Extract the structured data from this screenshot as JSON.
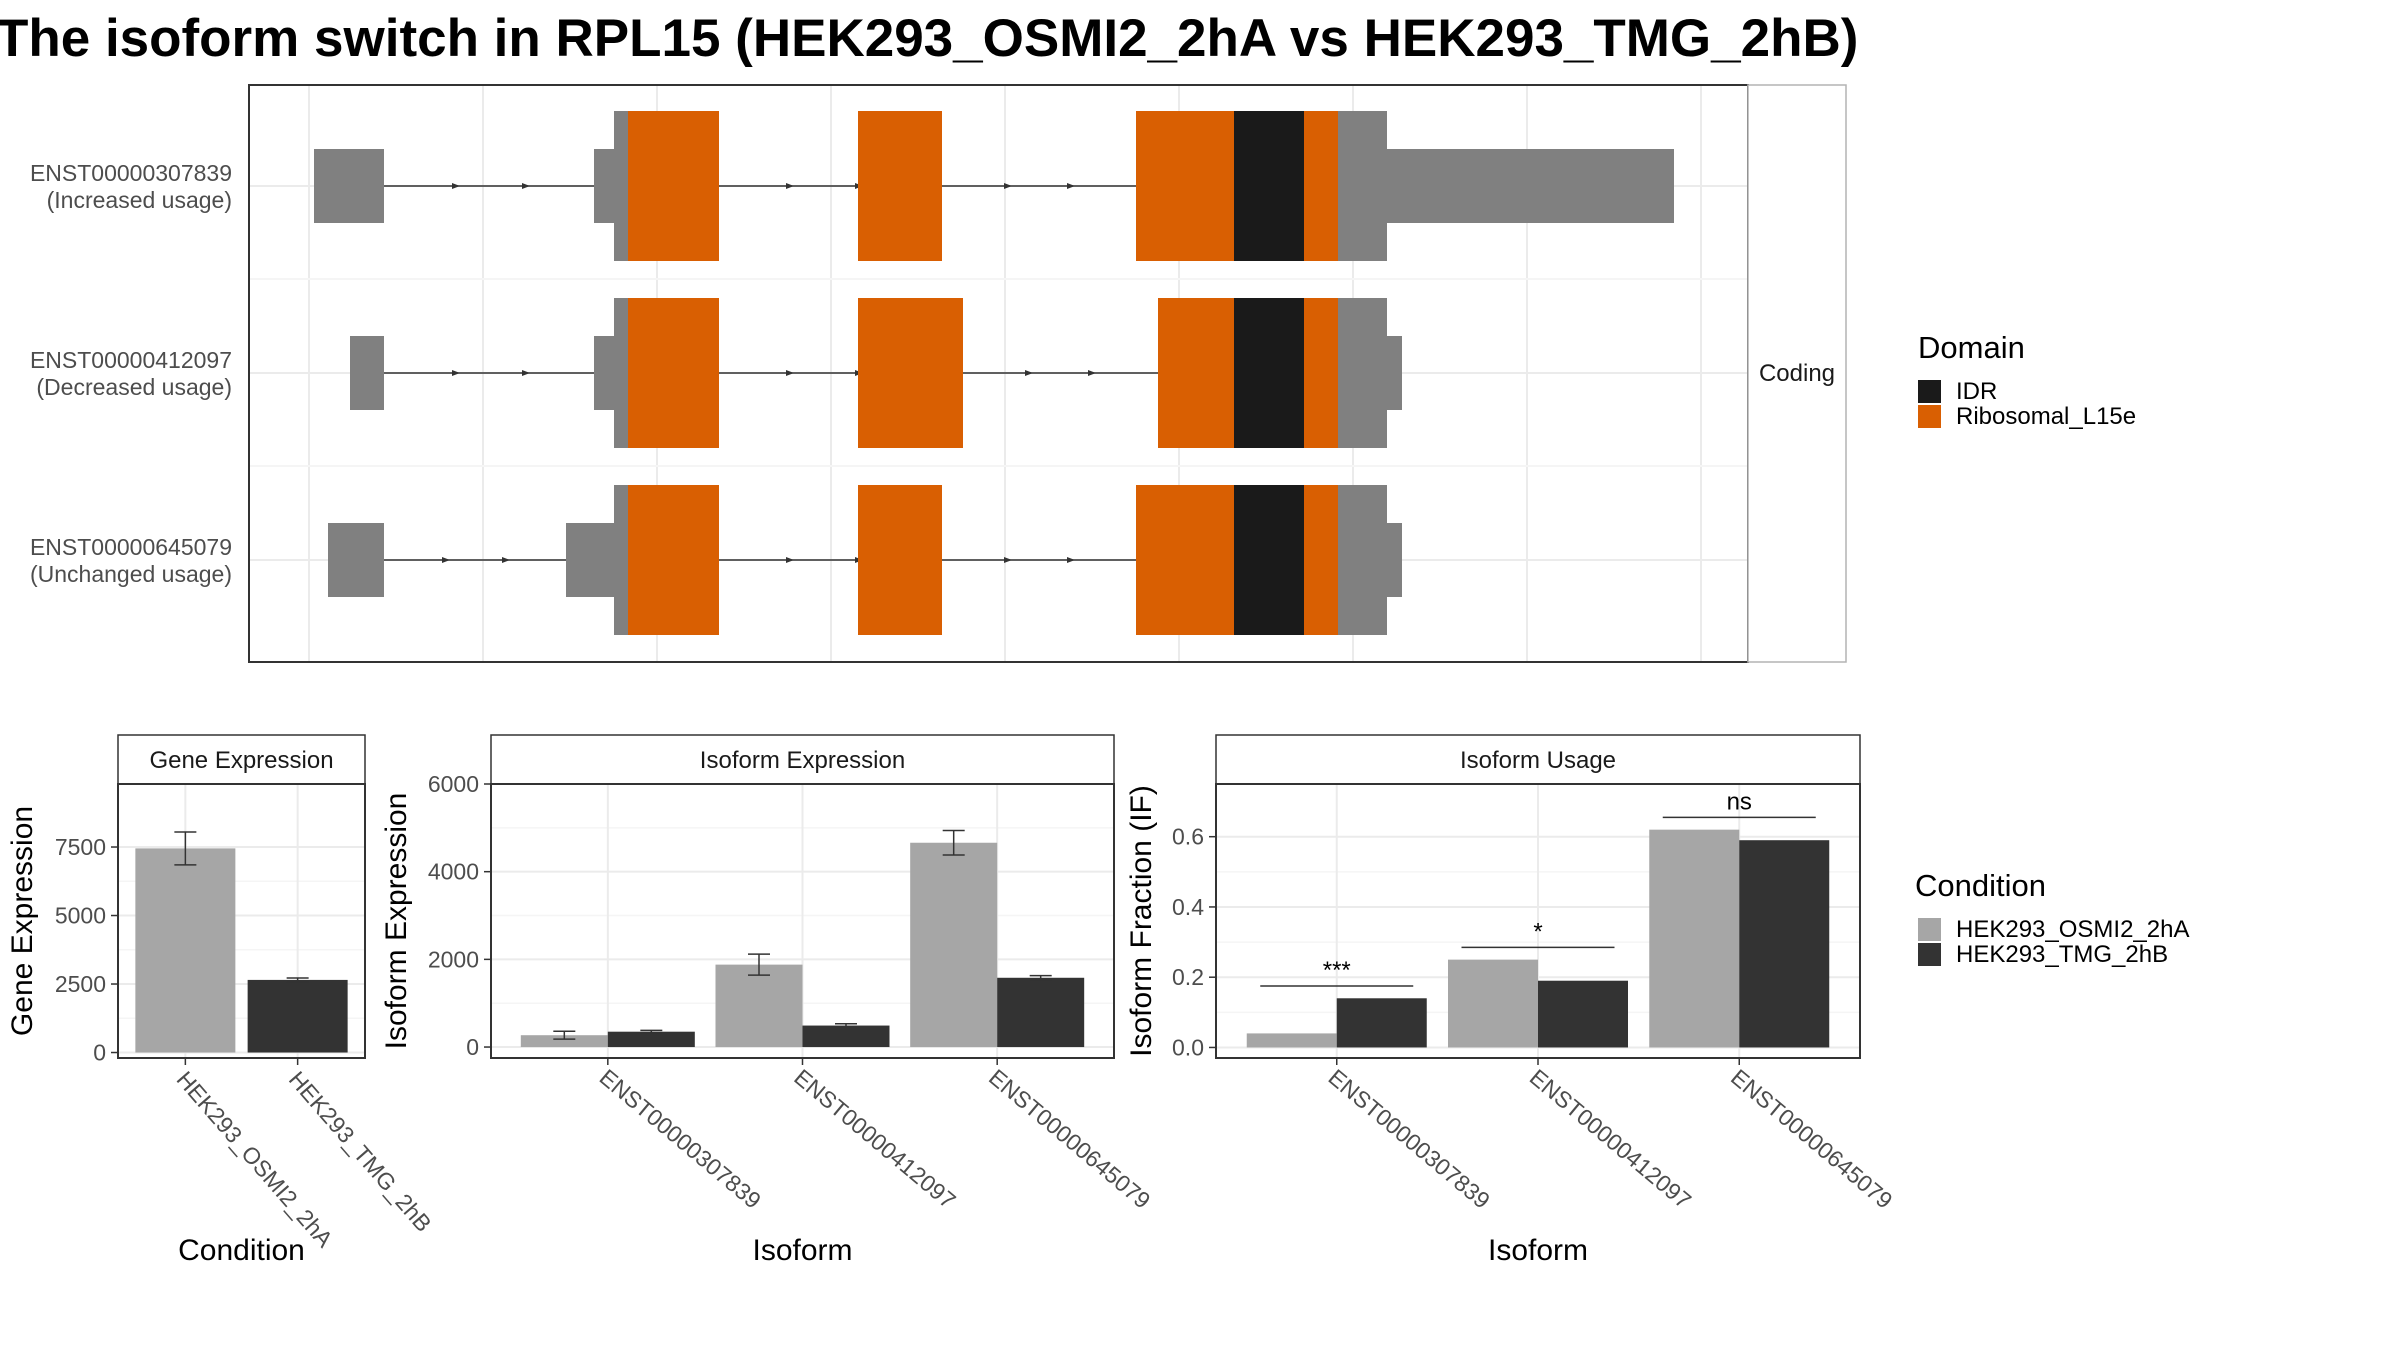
{
  "title": "The isoform switch in RPL15 (HEK293_OSMI2_2hA vs HEK293_TMG_2hB)",
  "colors": {
    "ribosomal": "#D95F02",
    "idr": "#1A1A1A",
    "utr": "#808080",
    "condA": "#A6A6A6",
    "condB": "#333333",
    "grid": "#EBEBEB",
    "panel_border": "#333333",
    "strip_border": "#B3B3B3"
  },
  "structure": {
    "strip_label": "Coding",
    "transcripts": [
      {
        "id": "ENST00000307839",
        "usage": "(Increased usage)"
      },
      {
        "id": "ENST00000412097",
        "usage": "(Decreased usage)"
      },
      {
        "id": "ENST00000645079",
        "usage": "(Unchanged usage)"
      }
    ]
  },
  "legend_domain": {
    "title": "Domain",
    "items": [
      {
        "label": "IDR",
        "color": "#1A1A1A"
      },
      {
        "label": "Ribosomal_L15e",
        "color": "#D95F02"
      }
    ]
  },
  "legend_condition": {
    "title": "Condition",
    "items": [
      {
        "label": "HEK293_OSMI2_2hA",
        "color": "#A6A6A6"
      },
      {
        "label": "HEK293_TMG_2hB",
        "color": "#333333"
      }
    ]
  },
  "chart_data": [
    {
      "type": "bar",
      "title": "Gene Expression",
      "xlabel": "Condition",
      "ylabel": "Gene Expression",
      "categories": [
        "HEK293_OSMI2_2hA",
        "HEK293_TMG_2hB"
      ],
      "values": [
        7450,
        2650
      ],
      "errors": [
        [
          6850,
          8050
        ],
        [
          2580,
          2720
        ]
      ],
      "ylim": [
        -200,
        9800
      ],
      "yticks": [
        0,
        2500,
        5000,
        7500
      ],
      "ytick_labels": [
        "0",
        "2500",
        "5000",
        "7500"
      ]
    },
    {
      "type": "bar",
      "title": "Isoform Expression",
      "xlabel": "Isoform",
      "ylabel": "Isoform Expression",
      "categories": [
        "ENST00000307839",
        "ENST00000412097",
        "ENST00000645079"
      ],
      "series": [
        {
          "name": "HEK293_OSMI2_2hA",
          "values": [
            270,
            1880,
            4660
          ],
          "errors": [
            [
              180,
              360
            ],
            [
              1640,
              2120
            ],
            [
              4380,
              4940
            ]
          ]
        },
        {
          "name": "HEK293_TMG_2hB",
          "values": [
            350,
            490,
            1580
          ],
          "errors": [
            [
              320,
              380
            ],
            [
              450,
              530
            ],
            [
              1530,
              1630
            ]
          ]
        }
      ],
      "ylim": [
        -250,
        6000
      ],
      "yticks": [
        0,
        2000,
        4000,
        6000
      ],
      "ytick_labels": [
        "0",
        "2000",
        "4000",
        "6000"
      ]
    },
    {
      "type": "bar",
      "title": "Isoform Usage",
      "xlabel": "Isoform",
      "ylabel": "Isoform Fraction (IF)",
      "categories": [
        "ENST00000307839",
        "ENST00000412097",
        "ENST00000645079"
      ],
      "series": [
        {
          "name": "HEK293_OSMI2_2hA",
          "values": [
            0.04,
            0.25,
            0.62
          ]
        },
        {
          "name": "HEK293_TMG_2hB",
          "values": [
            0.14,
            0.19,
            0.59
          ]
        }
      ],
      "significance": [
        "***",
        "*",
        "ns"
      ],
      "ylim": [
        -0.03,
        0.75
      ],
      "yticks": [
        0.0,
        0.2,
        0.4,
        0.6
      ],
      "ytick_labels": [
        "0.0",
        "0.2",
        "0.4",
        "0.6"
      ]
    }
  ]
}
